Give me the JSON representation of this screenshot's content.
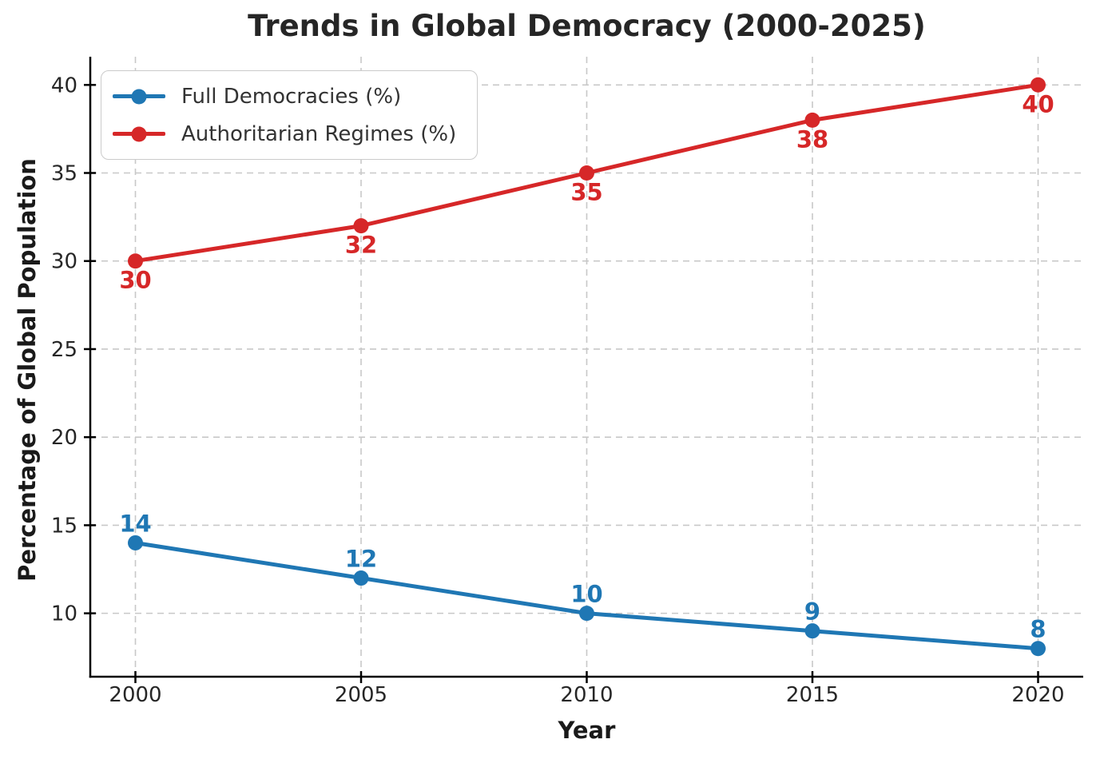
{
  "chart_data": {
    "type": "line",
    "title": "Trends in Global Democracy (2000-2025)",
    "xlabel": "Year",
    "ylabel": "Percentage of Global Population",
    "x": [
      2000,
      2005,
      2010,
      2015,
      2020
    ],
    "series": [
      {
        "name": "Full Democracies (%)",
        "color": "#1f77b4",
        "values": [
          14,
          12,
          10,
          9,
          8
        ],
        "point_labels": [
          "14",
          "12",
          "10",
          "9",
          "8"
        ],
        "label_placement": "above"
      },
      {
        "name": "Authoritarian Regimes (%)",
        "color": "#d62728",
        "values": [
          30,
          32,
          35,
          38,
          40
        ],
        "point_labels": [
          "30",
          "32",
          "35",
          "38",
          "40"
        ],
        "label_placement": "below"
      }
    ],
    "xtick_labels": [
      "2000",
      "2005",
      "2010",
      "2015",
      "2020"
    ],
    "xtick_values": [
      2000,
      2005,
      2010,
      2015,
      2020
    ],
    "ytick_labels": [
      "10",
      "15",
      "20",
      "25",
      "30",
      "35",
      "40"
    ],
    "ytick_values": [
      10,
      15,
      20,
      25,
      30,
      35,
      40
    ],
    "xlim": [
      1999,
      2021
    ],
    "ylim": [
      6.4,
      41.6
    ],
    "grid": true,
    "grid_style": "dashed",
    "legend_position": "upper-left",
    "colors": {
      "grid": "#c8c8c8",
      "axis": "#000000",
      "tick_text": "#262626",
      "title_text": "#262626",
      "legend_text": "#333333",
      "background": "#ffffff"
    }
  }
}
